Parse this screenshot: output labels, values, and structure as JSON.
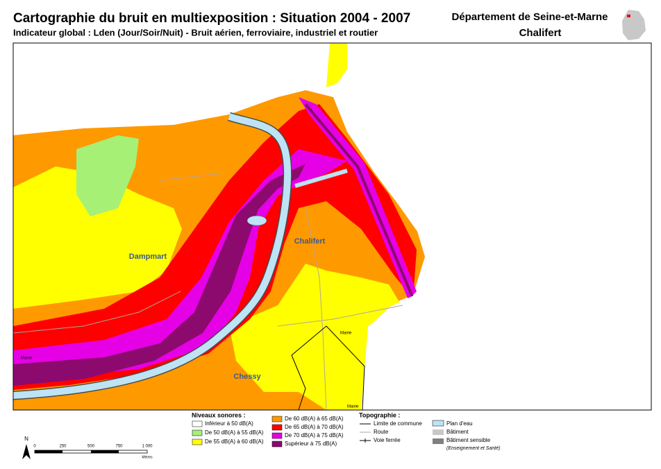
{
  "header": {
    "title": "Cartographie du bruit en multiexposition : Situation 2004 - 2007",
    "subtitle": "Indicateur global : Lden (Jour/Soir/Nuit) - Bruit aérien, ferroviaire, industriel et routier",
    "department": "Département de Seine-et-Marne",
    "commune": "Chalifert"
  },
  "map": {
    "places": [
      "Dampmart",
      "Chalifert",
      "Chessy"
    ],
    "small_labels": [
      "Mairie",
      "Mairie",
      "Mairie"
    ]
  },
  "legend": {
    "noise": {
      "title": "Niveaux sonores :",
      "items": [
        {
          "label": "Inférieur à 50 dB(A)",
          "color": "#ffffff"
        },
        {
          "label": "De 50 dB(A) à 55 dB(A)",
          "color": "#a6f075"
        },
        {
          "label": "De 55 dB(A) à 60 dB(A)",
          "color": "#ffff00"
        },
        {
          "label": "De 60 dB(A) à 65 dB(A)",
          "color": "#ff9900"
        },
        {
          "label": "De 65 dB(A) à 70 dB(A)",
          "color": "#ff0000"
        },
        {
          "label": "De 70 dB(A) à 75 dB(A)",
          "color": "#e600e6"
        },
        {
          "label": "Supérieur à 75 dB(A)",
          "color": "#8c0a6e"
        }
      ]
    },
    "topography": {
      "title": "Topographie :",
      "items": [
        "Limite de commune",
        "Route",
        "Voie ferrée",
        "Plan d'eau",
        "Bâtiment",
        "Bâtiment sensible"
      ],
      "note": "(Enseignement et Santé)"
    }
  },
  "scale": {
    "north": "N",
    "ticks": [
      "0",
      "250",
      "500",
      "750",
      "1 000"
    ],
    "unit": "Mètres"
  }
}
